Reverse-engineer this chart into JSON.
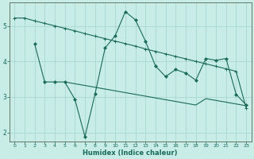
{
  "xlabel": "Humidex (Indice chaleur)",
  "background_color": "#c8ece6",
  "grid_color": "#a8d8d0",
  "line_color": "#1a6b5a",
  "xlim": [
    -0.5,
    23.5
  ],
  "ylim": [
    1.75,
    5.65
  ],
  "yticks": [
    2,
    3,
    4,
    5
  ],
  "xticks": [
    0,
    1,
    2,
    3,
    4,
    5,
    6,
    7,
    8,
    9,
    10,
    11,
    12,
    13,
    14,
    15,
    16,
    17,
    18,
    19,
    20,
    21,
    22,
    23
  ],
  "line1_x": [
    0,
    1,
    2,
    3,
    4,
    5,
    6,
    7,
    8,
    9,
    10,
    11,
    12,
    13,
    14,
    15,
    16,
    17,
    18,
    19,
    20,
    21,
    22,
    23
  ],
  "line1_y": [
    5.22,
    5.22,
    5.14,
    5.07,
    5.0,
    4.93,
    4.86,
    4.78,
    4.71,
    4.64,
    4.57,
    4.5,
    4.43,
    4.35,
    4.28,
    4.21,
    4.14,
    4.07,
    4.0,
    3.93,
    3.86,
    3.79,
    3.72,
    2.68
  ],
  "line2_x": [
    2,
    3,
    4,
    5,
    6,
    7,
    8,
    9,
    10,
    11,
    12,
    13,
    14,
    15,
    16,
    17,
    18,
    19,
    20,
    21,
    22,
    23
  ],
  "line2_y": [
    4.5,
    3.42,
    3.42,
    3.42,
    2.93,
    1.88,
    3.08,
    4.38,
    4.72,
    5.4,
    5.17,
    4.57,
    3.87,
    3.57,
    3.77,
    3.67,
    3.47,
    4.08,
    4.03,
    4.08,
    3.07,
    2.77
  ],
  "line3_x": [
    5,
    6,
    7,
    8,
    9,
    10,
    11,
    12,
    13,
    14,
    15,
    16,
    17,
    18,
    19,
    20,
    21,
    22,
    23
  ],
  "line3_y": [
    3.42,
    3.37,
    3.32,
    3.27,
    3.22,
    3.17,
    3.12,
    3.07,
    3.02,
    2.97,
    2.92,
    2.87,
    2.82,
    2.77,
    2.95,
    2.9,
    2.85,
    2.8,
    2.75
  ]
}
